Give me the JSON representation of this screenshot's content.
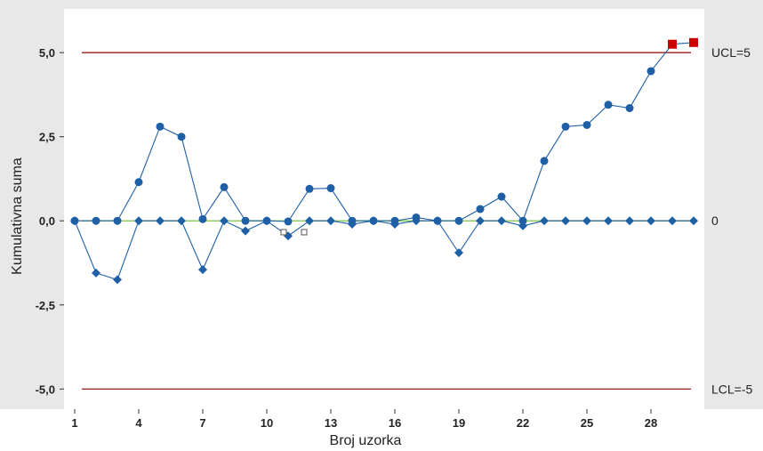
{
  "chart_data": {
    "type": "line",
    "title": "",
    "xlabel": "Broj uzorka",
    "ylabel": "Kumulativna suma",
    "xlim": [
      0.5,
      30.5
    ],
    "ylim": [
      -5.6,
      6.3
    ],
    "x_ticks": [
      1,
      4,
      7,
      10,
      13,
      16,
      19,
      22,
      25,
      28
    ],
    "y_ticks": [
      {
        "value": 5.0,
        "label": "5,0"
      },
      {
        "value": 2.5,
        "label": "2,5"
      },
      {
        "value": 0.0,
        "label": "0,0"
      },
      {
        "value": -2.5,
        "label": "-2,5"
      },
      {
        "value": -5.0,
        "label": "-5,0"
      }
    ],
    "reference_lines": [
      {
        "value": 5,
        "label": "UCL=5",
        "color": "#8b0000"
      },
      {
        "value": 0,
        "label": "0",
        "color": "#7cc242"
      },
      {
        "value": -5,
        "label": "LCL=-5",
        "color": "#8b0000"
      }
    ],
    "x": [
      1,
      2,
      3,
      4,
      5,
      6,
      7,
      8,
      9,
      10,
      11,
      12,
      13,
      14,
      15,
      16,
      17,
      18,
      19,
      20,
      21,
      22,
      23,
      24,
      25,
      26,
      27,
      28,
      29,
      30
    ],
    "series": [
      {
        "marker": "circle",
        "values": [
          0.0,
          0.0,
          0.0,
          1.15,
          2.8,
          2.5,
          0.05,
          1.0,
          0.0,
          0.0,
          -0.02,
          0.95,
          0.97,
          0.0,
          0.0,
          0.0,
          0.1,
          0.0,
          0.0,
          0.35,
          0.72,
          0.0,
          1.78,
          2.8,
          2.85,
          3.45,
          3.35,
          4.45,
          5.25,
          5.3
        ],
        "out_of_control": [
          29,
          30
        ]
      },
      {
        "marker": "diamond",
        "values": [
          0.0,
          -1.55,
          -1.75,
          0.0,
          0.0,
          0.0,
          -1.45,
          0.0,
          -0.3,
          0.0,
          -0.45,
          0.0,
          0.0,
          -0.1,
          0.0,
          -0.1,
          0.0,
          0.0,
          -0.95,
          0.0,
          0.0,
          -0.15,
          0.0,
          0.0,
          0.0,
          0.0,
          0.0,
          0.0,
          0.0,
          0.0
        ]
      }
    ],
    "colors": {
      "series": "#1f5fa6",
      "out_of_control": "#cc0000",
      "limit": "#8b0000",
      "center": "#7cc242",
      "plot_bg": "#ffffff",
      "frame_bg": "#e8e8e8"
    }
  }
}
